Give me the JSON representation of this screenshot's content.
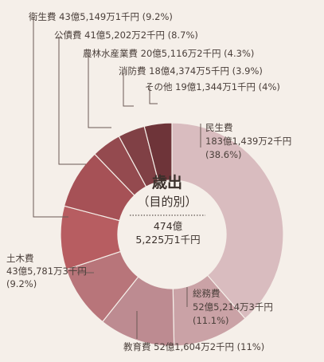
{
  "chart_data": {
    "type": "pie",
    "center": {
      "title": "歳出",
      "subtitle": "（目的別）",
      "total_line1": "474億",
      "total_line2": "5,225万1千円"
    },
    "slices": [
      {
        "name": "民生費",
        "amount": "183億1,439万2千円",
        "percent": 38.6,
        "percent_label": "(38.6%)",
        "color": "#d9bcbf"
      },
      {
        "name": "総務費",
        "amount": "52億5,214万3千円",
        "percent": 11.1,
        "percent_label": "(11.1%)",
        "color": "#caa2a6"
      },
      {
        "name": "教育費",
        "amount": "52億1,604万2千円",
        "percent": 11,
        "percent_label": "(11%)",
        "color": "#bd8b91"
      },
      {
        "name": "土木費",
        "amount": "43億5,781万3千円",
        "percent": 9.2,
        "percent_label": "(9.2%)",
        "color": "#b8757a"
      },
      {
        "name": "衛生費",
        "amount": "43億5,149万1千円",
        "percent": 9.2,
        "percent_label": "(9.2%)",
        "color": "#b75d61"
      },
      {
        "name": "公債費",
        "amount": "41億5,202万2千円",
        "percent": 8.7,
        "percent_label": "(8.7%)",
        "color": "#a65156"
      },
      {
        "name": "農林水産業費",
        "amount": "20億5,116万2千円",
        "percent": 4.3,
        "percent_label": "(4.3%)",
        "color": "#944a4f"
      },
      {
        "name": "消防費",
        "amount": "18億4,374万5千円",
        "percent": 3.9,
        "percent_label": "(3.9%)",
        "color": "#804045"
      },
      {
        "name": "その他",
        "amount": "19億1,344万1千円",
        "percent": 4,
        "percent_label": "(4%)",
        "color": "#6e3439"
      }
    ],
    "labels": {
      "minsei_1": "民生費",
      "minsei_2": "183億1,439万2千円",
      "minsei_3": "(38.6%)",
      "somu_1": "総務費",
      "somu_2": "52億5,214万3千円",
      "somu_3": "(11.1%)",
      "kyoiku": "教育費 52億1,604万2千円 (11%)",
      "doboku_1": "土木費",
      "doboku_2": "43億5,781万3千円",
      "doboku_3": "(9.2%)",
      "eisei": "衛生費 43億5,149万1千円 (9.2%)",
      "kosai": "公債費 41億5,202万2千円 (8.7%)",
      "norin": "農林水産業費 20億5,116万2千円 (4.3%)",
      "shobo": "消防費 18億4,374万5千円 (3.9%)",
      "sonota": "その他 19億1,344万1千円 (4%)"
    }
  }
}
